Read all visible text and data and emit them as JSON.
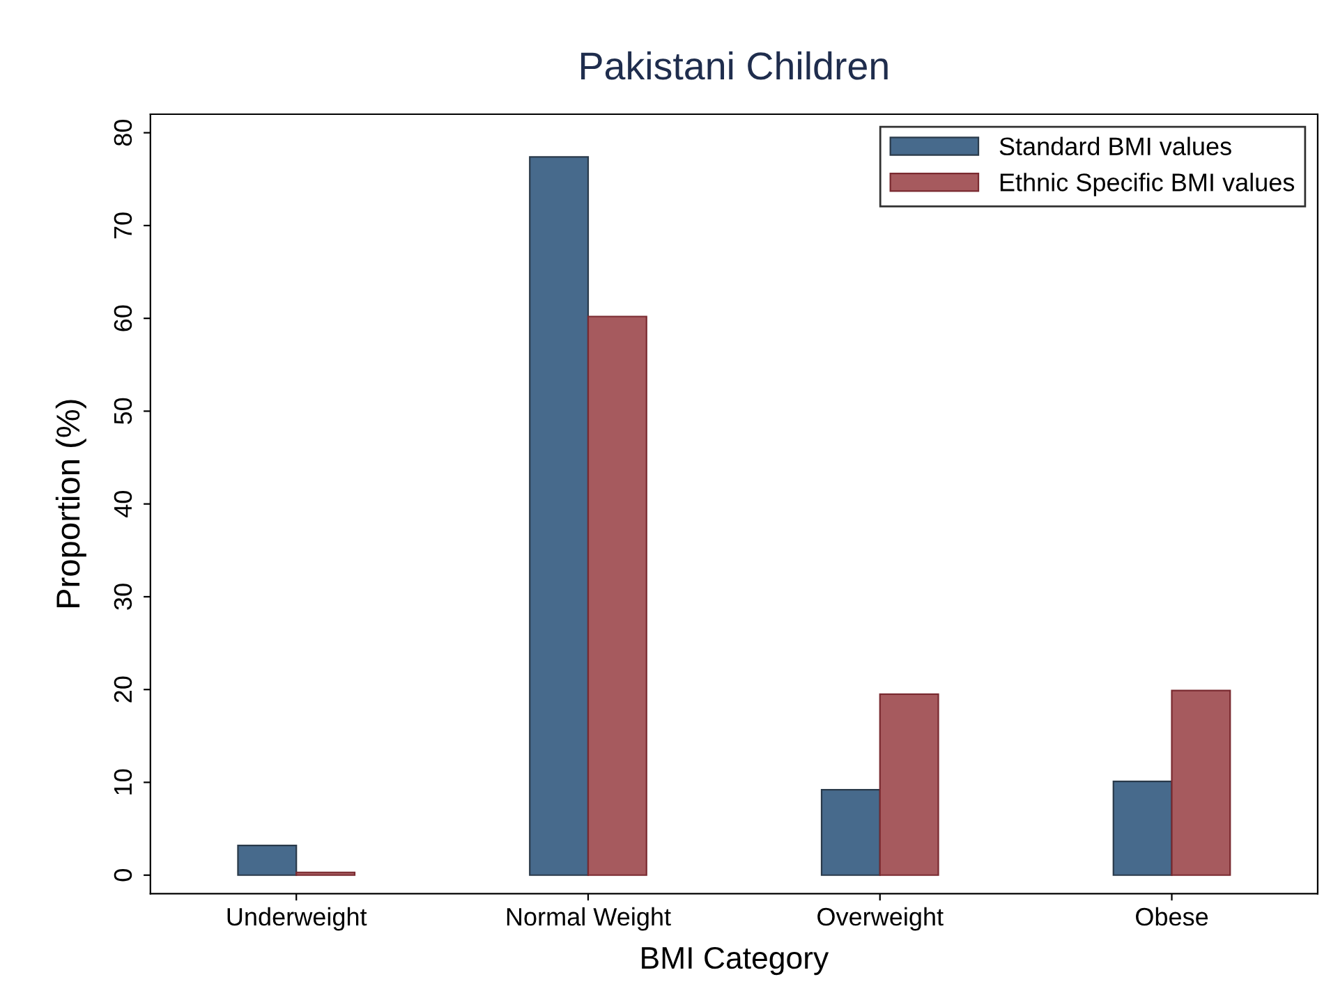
{
  "chart_data": {
    "type": "bar",
    "title": "Pakistani Children",
    "xlabel": "BMI Category",
    "ylabel": "Proportion (%)",
    "categories": [
      "Underweight",
      "Normal Weight",
      "Overweight",
      "Obese"
    ],
    "series": [
      {
        "name": "Standard BMI values",
        "color": "#476a8c",
        "values": [
          3.2,
          77.4,
          9.2,
          10.1
        ]
      },
      {
        "name": "Ethnic Specific BMI values",
        "color": "#a65a5e",
        "values": [
          0.3,
          60.2,
          19.5,
          19.9
        ]
      }
    ],
    "ylim": [
      -2,
      82
    ],
    "yticks": [
      0,
      10,
      20,
      30,
      40,
      50,
      60,
      70,
      80
    ],
    "grid": false,
    "legend": "top right"
  }
}
